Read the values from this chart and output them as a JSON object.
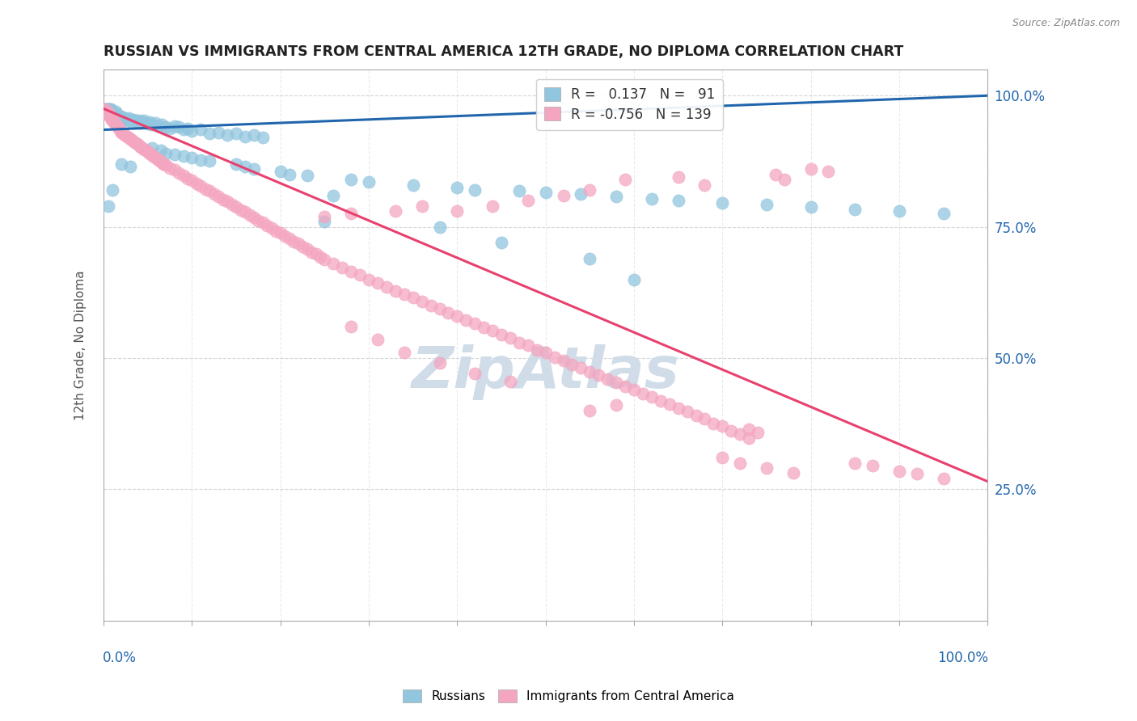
{
  "title": "RUSSIAN VS IMMIGRANTS FROM CENTRAL AMERICA 12TH GRADE, NO DIPLOMA CORRELATION CHART",
  "source": "Source: ZipAtlas.com",
  "ylabel": "12th Grade, No Diploma",
  "legend_label_blue": "Russians",
  "legend_label_pink": "Immigrants from Central America",
  "R_blue": 0.137,
  "N_blue": 91,
  "R_pink": -0.756,
  "N_pink": 139,
  "blue_color": "#92c5de",
  "pink_color": "#f4a6c0",
  "blue_line_color": "#2166ac",
  "pink_line_color": "#e8416f",
  "blue_trend": [
    0.0,
    0.935,
    1.0,
    1.0
  ],
  "pink_trend": [
    0.0,
    0.975,
    1.0,
    0.265
  ],
  "watermark_color": "#d0dce8",
  "xlim": [
    0.0,
    1.0
  ],
  "ylim": [
    0.0,
    1.05
  ],
  "blue_dots": [
    [
      0.002,
      0.975
    ],
    [
      0.003,
      0.975
    ],
    [
      0.004,
      0.975
    ],
    [
      0.005,
      0.975
    ],
    [
      0.006,
      0.975
    ],
    [
      0.007,
      0.975
    ],
    [
      0.008,
      0.975
    ],
    [
      0.009,
      0.96
    ],
    [
      0.01,
      0.97
    ],
    [
      0.011,
      0.96
    ],
    [
      0.012,
      0.965
    ],
    [
      0.013,
      0.958
    ],
    [
      0.014,
      0.97
    ],
    [
      0.015,
      0.965
    ],
    [
      0.016,
      0.96
    ],
    [
      0.017,
      0.955
    ],
    [
      0.018,
      0.96
    ],
    [
      0.019,
      0.958
    ],
    [
      0.02,
      0.96
    ],
    [
      0.022,
      0.955
    ],
    [
      0.024,
      0.958
    ],
    [
      0.026,
      0.952
    ],
    [
      0.028,
      0.958
    ],
    [
      0.03,
      0.955
    ],
    [
      0.032,
      0.95
    ],
    [
      0.034,
      0.955
    ],
    [
      0.036,
      0.952
    ],
    [
      0.038,
      0.95
    ],
    [
      0.04,
      0.952
    ],
    [
      0.042,
      0.948
    ],
    [
      0.044,
      0.95
    ],
    [
      0.046,
      0.952
    ],
    [
      0.048,
      0.948
    ],
    [
      0.05,
      0.946
    ],
    [
      0.052,
      0.95
    ],
    [
      0.054,
      0.945
    ],
    [
      0.058,
      0.948
    ],
    [
      0.062,
      0.942
    ],
    [
      0.066,
      0.945
    ],
    [
      0.07,
      0.94
    ],
    [
      0.075,
      0.938
    ],
    [
      0.08,
      0.942
    ],
    [
      0.085,
      0.94
    ],
    [
      0.09,
      0.935
    ],
    [
      0.095,
      0.938
    ],
    [
      0.1,
      0.932
    ],
    [
      0.11,
      0.935
    ],
    [
      0.12,
      0.928
    ],
    [
      0.13,
      0.93
    ],
    [
      0.14,
      0.925
    ],
    [
      0.15,
      0.928
    ],
    [
      0.16,
      0.922
    ],
    [
      0.17,
      0.925
    ],
    [
      0.18,
      0.92
    ],
    [
      0.055,
      0.9
    ],
    [
      0.065,
      0.895
    ],
    [
      0.07,
      0.89
    ],
    [
      0.08,
      0.888
    ],
    [
      0.09,
      0.885
    ],
    [
      0.1,
      0.882
    ],
    [
      0.11,
      0.878
    ],
    [
      0.12,
      0.875
    ],
    [
      0.15,
      0.87
    ],
    [
      0.16,
      0.865
    ],
    [
      0.17,
      0.86
    ],
    [
      0.2,
      0.855
    ],
    [
      0.21,
      0.85
    ],
    [
      0.23,
      0.848
    ],
    [
      0.28,
      0.84
    ],
    [
      0.3,
      0.835
    ],
    [
      0.02,
      0.87
    ],
    [
      0.03,
      0.865
    ],
    [
      0.35,
      0.83
    ],
    [
      0.4,
      0.825
    ],
    [
      0.42,
      0.82
    ],
    [
      0.47,
      0.818
    ],
    [
      0.5,
      0.815
    ],
    [
      0.54,
      0.812
    ],
    [
      0.58,
      0.808
    ],
    [
      0.62,
      0.804
    ],
    [
      0.65,
      0.8
    ],
    [
      0.7,
      0.796
    ],
    [
      0.75,
      0.792
    ],
    [
      0.8,
      0.788
    ],
    [
      0.85,
      0.784
    ],
    [
      0.9,
      0.78
    ],
    [
      0.95,
      0.776
    ],
    [
      0.005,
      0.79
    ],
    [
      0.01,
      0.82
    ],
    [
      0.25,
      0.76
    ],
    [
      0.26,
      0.81
    ],
    [
      0.38,
      0.75
    ],
    [
      0.45,
      0.72
    ],
    [
      0.55,
      0.69
    ],
    [
      0.6,
      0.65
    ]
  ],
  "pink_dots": [
    [
      0.002,
      0.975
    ],
    [
      0.003,
      0.97
    ],
    [
      0.004,
      0.965
    ],
    [
      0.005,
      0.968
    ],
    [
      0.006,
      0.962
    ],
    [
      0.007,
      0.96
    ],
    [
      0.008,
      0.958
    ],
    [
      0.009,
      0.955
    ],
    [
      0.01,
      0.952
    ],
    [
      0.011,
      0.958
    ],
    [
      0.012,
      0.95
    ],
    [
      0.013,
      0.948
    ],
    [
      0.014,
      0.945
    ],
    [
      0.015,
      0.942
    ],
    [
      0.016,
      0.94
    ],
    [
      0.017,
      0.938
    ],
    [
      0.018,
      0.935
    ],
    [
      0.019,
      0.932
    ],
    [
      0.02,
      0.93
    ],
    [
      0.022,
      0.928
    ],
    [
      0.024,
      0.925
    ],
    [
      0.026,
      0.922
    ],
    [
      0.028,
      0.92
    ],
    [
      0.03,
      0.918
    ],
    [
      0.032,
      0.915
    ],
    [
      0.034,
      0.912
    ],
    [
      0.036,
      0.91
    ],
    [
      0.038,
      0.908
    ],
    [
      0.04,
      0.905
    ],
    [
      0.042,
      0.902
    ],
    [
      0.044,
      0.9
    ],
    [
      0.046,
      0.898
    ],
    [
      0.048,
      0.895
    ],
    [
      0.05,
      0.892
    ],
    [
      0.052,
      0.89
    ],
    [
      0.054,
      0.888
    ],
    [
      0.056,
      0.885
    ],
    [
      0.058,
      0.882
    ],
    [
      0.06,
      0.88
    ],
    [
      0.062,
      0.878
    ],
    [
      0.064,
      0.875
    ],
    [
      0.066,
      0.872
    ],
    [
      0.068,
      0.87
    ],
    [
      0.07,
      0.868
    ],
    [
      0.075,
      0.862
    ],
    [
      0.08,
      0.858
    ],
    [
      0.085,
      0.852
    ],
    [
      0.09,
      0.848
    ],
    [
      0.095,
      0.842
    ],
    [
      0.1,
      0.838
    ],
    [
      0.105,
      0.832
    ],
    [
      0.11,
      0.828
    ],
    [
      0.115,
      0.822
    ],
    [
      0.12,
      0.818
    ],
    [
      0.125,
      0.812
    ],
    [
      0.13,
      0.808
    ],
    [
      0.135,
      0.802
    ],
    [
      0.14,
      0.798
    ],
    [
      0.145,
      0.792
    ],
    [
      0.15,
      0.788
    ],
    [
      0.155,
      0.782
    ],
    [
      0.16,
      0.778
    ],
    [
      0.165,
      0.772
    ],
    [
      0.17,
      0.768
    ],
    [
      0.175,
      0.762
    ],
    [
      0.18,
      0.758
    ],
    [
      0.185,
      0.752
    ],
    [
      0.19,
      0.748
    ],
    [
      0.195,
      0.742
    ],
    [
      0.2,
      0.738
    ],
    [
      0.205,
      0.732
    ],
    [
      0.21,
      0.728
    ],
    [
      0.215,
      0.722
    ],
    [
      0.22,
      0.718
    ],
    [
      0.225,
      0.712
    ],
    [
      0.23,
      0.708
    ],
    [
      0.235,
      0.702
    ],
    [
      0.24,
      0.698
    ],
    [
      0.245,
      0.692
    ],
    [
      0.25,
      0.688
    ],
    [
      0.26,
      0.68
    ],
    [
      0.27,
      0.672
    ],
    [
      0.28,
      0.665
    ],
    [
      0.29,
      0.658
    ],
    [
      0.3,
      0.65
    ],
    [
      0.31,
      0.643
    ],
    [
      0.32,
      0.636
    ],
    [
      0.33,
      0.628
    ],
    [
      0.34,
      0.622
    ],
    [
      0.35,
      0.615
    ],
    [
      0.36,
      0.608
    ],
    [
      0.37,
      0.6
    ],
    [
      0.38,
      0.594
    ],
    [
      0.39,
      0.586
    ],
    [
      0.4,
      0.58
    ],
    [
      0.41,
      0.572
    ],
    [
      0.42,
      0.566
    ],
    [
      0.43,
      0.558
    ],
    [
      0.44,
      0.552
    ],
    [
      0.45,
      0.544
    ],
    [
      0.46,
      0.538
    ],
    [
      0.47,
      0.53
    ],
    [
      0.48,
      0.524
    ],
    [
      0.49,
      0.516
    ],
    [
      0.5,
      0.51
    ],
    [
      0.51,
      0.502
    ],
    [
      0.52,
      0.496
    ],
    [
      0.53,
      0.488
    ],
    [
      0.54,
      0.482
    ],
    [
      0.55,
      0.474
    ],
    [
      0.56,
      0.468
    ],
    [
      0.57,
      0.46
    ],
    [
      0.58,
      0.454
    ],
    [
      0.59,
      0.446
    ],
    [
      0.6,
      0.44
    ],
    [
      0.61,
      0.432
    ],
    [
      0.62,
      0.426
    ],
    [
      0.63,
      0.418
    ],
    [
      0.64,
      0.412
    ],
    [
      0.65,
      0.404
    ],
    [
      0.66,
      0.398
    ],
    [
      0.67,
      0.39
    ],
    [
      0.68,
      0.384
    ],
    [
      0.69,
      0.376
    ],
    [
      0.7,
      0.37
    ],
    [
      0.71,
      0.362
    ],
    [
      0.72,
      0.356
    ],
    [
      0.73,
      0.348
    ],
    [
      0.73,
      0.365
    ],
    [
      0.74,
      0.358
    ],
    [
      0.76,
      0.85
    ],
    [
      0.77,
      0.84
    ],
    [
      0.68,
      0.83
    ],
    [
      0.65,
      0.845
    ],
    [
      0.59,
      0.84
    ],
    [
      0.55,
      0.82
    ],
    [
      0.52,
      0.81
    ],
    [
      0.48,
      0.8
    ],
    [
      0.44,
      0.79
    ],
    [
      0.4,
      0.78
    ],
    [
      0.36,
      0.79
    ],
    [
      0.33,
      0.78
    ],
    [
      0.28,
      0.775
    ],
    [
      0.25,
      0.77
    ],
    [
      0.7,
      0.31
    ],
    [
      0.72,
      0.3
    ],
    [
      0.75,
      0.29
    ],
    [
      0.78,
      0.282
    ],
    [
      0.8,
      0.86
    ],
    [
      0.82,
      0.855
    ],
    [
      0.85,
      0.3
    ],
    [
      0.87,
      0.295
    ],
    [
      0.9,
      0.285
    ],
    [
      0.92,
      0.28
    ],
    [
      0.95,
      0.27
    ],
    [
      0.55,
      0.4
    ],
    [
      0.58,
      0.41
    ],
    [
      0.46,
      0.455
    ],
    [
      0.42,
      0.47
    ],
    [
      0.38,
      0.49
    ],
    [
      0.34,
      0.51
    ],
    [
      0.31,
      0.535
    ],
    [
      0.28,
      0.56
    ]
  ]
}
